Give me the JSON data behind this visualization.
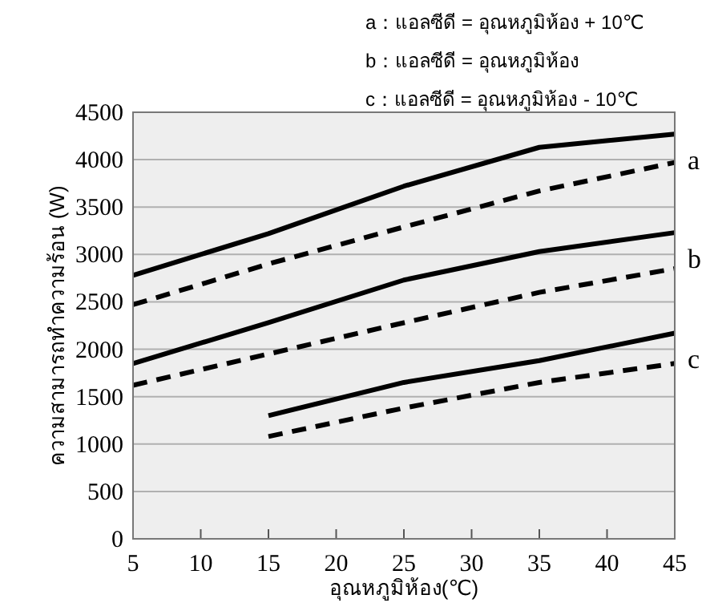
{
  "chart_data": {
    "type": "line",
    "xlabel": "อุณหภูมิห้อง(℃)",
    "ylabel": "ความสามารถทำความร้อน (W)",
    "x": [
      5,
      15,
      25,
      35,
      45
    ],
    "series": [
      {
        "name": "a",
        "color": "#000000",
        "line_style": "solid",
        "values": [
          2780,
          3220,
          3720,
          4130,
          4270
        ]
      },
      {
        "color": "#000000",
        "line_style": "dashed",
        "values": [
          2470,
          2900,
          3290,
          3670,
          3970
        ]
      },
      {
        "name": "b",
        "color": "#000000",
        "line_style": "solid",
        "values": [
          1850,
          2280,
          2730,
          3030,
          3230
        ]
      },
      {
        "color": "#000000",
        "line_style": "dashed",
        "values": [
          1620,
          1950,
          2280,
          2600,
          2850
        ]
      },
      {
        "name": "c",
        "color": "#000000",
        "line_style": "solid",
        "values": [
          null,
          1300,
          1650,
          1880,
          2170
        ]
      },
      {
        "color": "#000000",
        "line_style": "dashed",
        "values": [
          null,
          1080,
          1380,
          1650,
          1850
        ]
      }
    ],
    "xlim": [
      5,
      45
    ],
    "xticks": [
      5,
      10,
      15,
      20,
      25,
      30,
      35,
      40,
      45
    ],
    "ylim": [
      0,
      4500
    ],
    "yticks": [
      0,
      500,
      1000,
      1500,
      2000,
      2500,
      3000,
      3500,
      4000,
      4500
    ],
    "grid": "y",
    "annotations": [
      "a：แอลซีดี = อุณหภูมิห้อง + 10℃",
      "b：แอลซีดี = อุณหภูมิห้อง",
      "c：แอลซีดี = อุณหภูมิห้อง - 10℃"
    ]
  }
}
